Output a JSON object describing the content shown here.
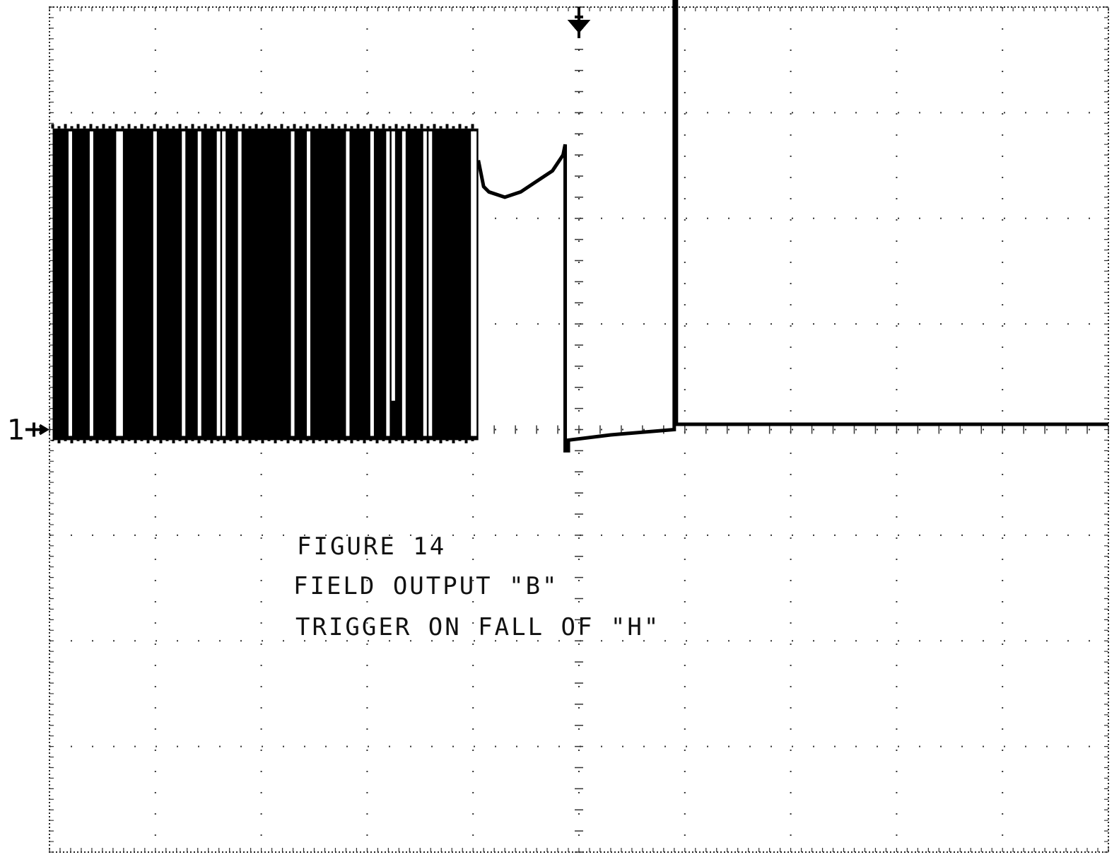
{
  "chart_data": {
    "type": "line",
    "title": "",
    "xlabel": "",
    "ylabel": "",
    "x_divisions": 10,
    "y_divisions": 8,
    "xlim": [
      0,
      10
    ],
    "ylim": [
      -4,
      4
    ],
    "channel_marker": "1",
    "trigger_position_div": 5.0,
    "ground_level_div": 0,
    "annotation": {
      "line1": "FIGURE 14",
      "line2": "FIELD OUTPUT \"B\"",
      "line3": "TRIGGER ON FALL OF \"H\""
    },
    "series": [
      {
        "segments": [
          {
            "kind": "burst",
            "x_start": 0.03,
            "x_end": 4.05,
            "high_div": 2.85,
            "low_div": -0.1,
            "white_gaps_div": [
              0.2,
              0.4,
              0.65,
              0.68,
              1.0,
              1.27,
              1.42,
              1.6,
              1.65,
              1.8,
              2.3,
              2.45,
              2.82,
              3.05,
              3.2,
              3.35,
              3.55,
              3.6,
              4.0,
              4.02
            ],
            "notch_gap": {
              "x": 3.25,
              "low_div": 0.3
            }
          },
          {
            "kind": "line",
            "points": [
              [
                4.05,
                2.55
              ],
              [
                4.1,
                2.3
              ],
              [
                4.15,
                2.25
              ],
              [
                4.3,
                2.2
              ],
              [
                4.45,
                2.25
              ],
              [
                4.6,
                2.35
              ],
              [
                4.75,
                2.45
              ],
              [
                4.85,
                2.6
              ]
            ]
          },
          {
            "kind": "line",
            "points": [
              [
                4.85,
                2.6
              ],
              [
                4.87,
                2.7
              ],
              [
                4.87,
                -0.2
              ],
              [
                4.9,
                -0.2
              ],
              [
                4.9,
                -0.1
              ],
              [
                5.3,
                -0.05
              ],
              [
                5.9,
                0.0
              ],
              [
                5.9,
                4.5
              ],
              [
                5.92,
                4.5
              ],
              [
                5.92,
                0.05
              ],
              [
                7.5,
                0.05
              ],
              [
                10.0,
                0.05
              ]
            ]
          }
        ]
      }
    ]
  }
}
